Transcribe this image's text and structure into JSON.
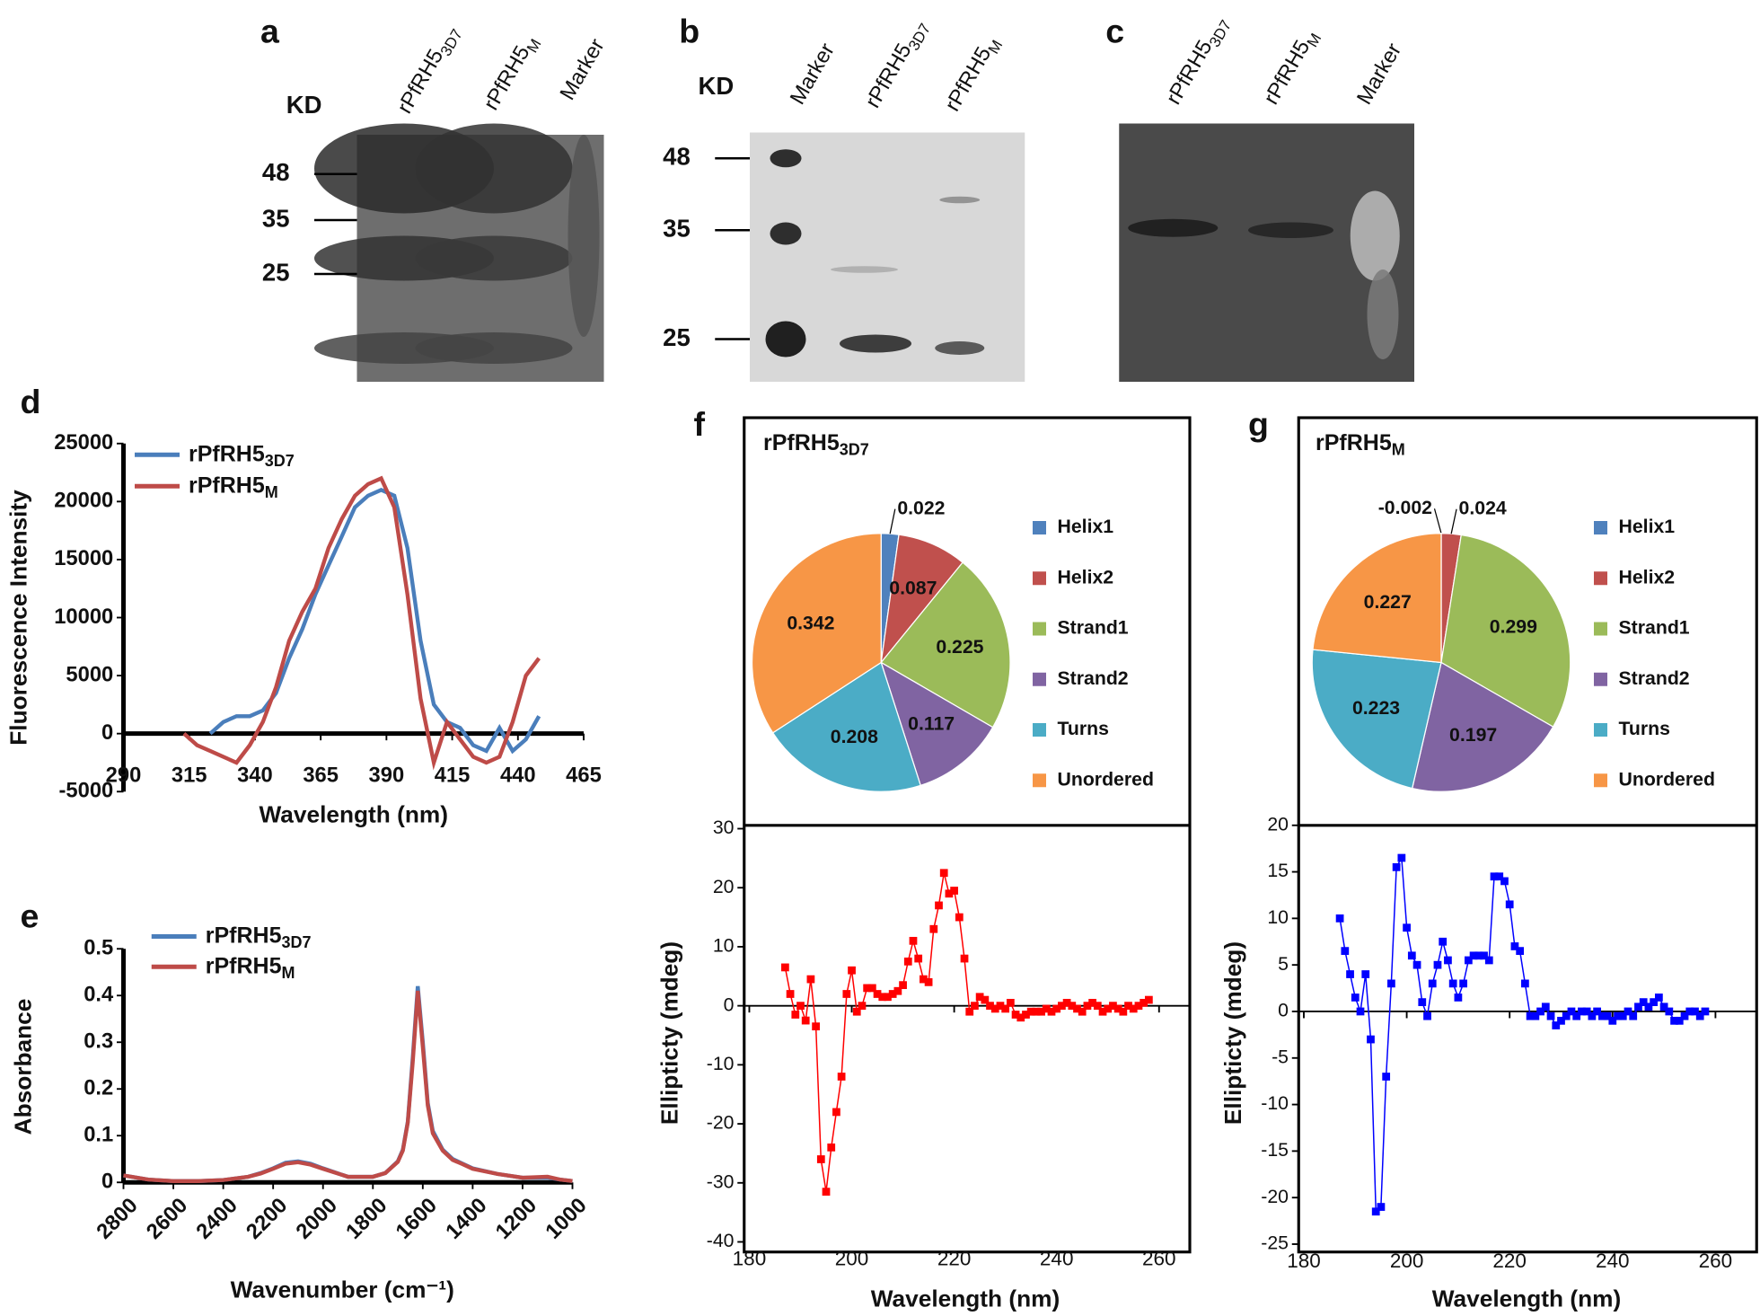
{
  "gels": [
    {
      "panel": "a",
      "unit": "KD",
      "lanes": [
        {
          "text": "rPfRH5",
          "sub": "3D7"
        },
        {
          "text": "rPfRH5",
          "sub": "M"
        },
        {
          "text": "Marker"
        }
      ],
      "markers": [
        48,
        35,
        25
      ]
    },
    {
      "panel": "b",
      "unit": "KD",
      "lanes": [
        {
          "text": "Marker"
        },
        {
          "text": "rPfRH5",
          "sub": "3D7"
        },
        {
          "text": "rPfRH5",
          "sub": "M"
        }
      ],
      "markers": [
        48,
        35,
        25
      ]
    },
    {
      "panel": "c",
      "lanes": [
        {
          "text": "rPfRH5",
          "sub": "3D7"
        },
        {
          "text": "rPfRH5",
          "sub": "M"
        },
        {
          "text": "Marker"
        }
      ]
    }
  ],
  "chart_data": [
    {
      "type": "line",
      "panel": "d",
      "xlabel": "Wavelength (nm)",
      "ylabel": "Fluorescence Intensity",
      "xlim": [
        290,
        465
      ],
      "xticks": [
        290,
        315,
        340,
        365,
        390,
        415,
        440,
        465
      ],
      "ylim": [
        -5000,
        25000
      ],
      "yticks": [
        -5000,
        0,
        5000,
        10000,
        15000,
        20000,
        25000
      ],
      "x": [
        313,
        318,
        323,
        328,
        333,
        338,
        343,
        348,
        353,
        358,
        363,
        368,
        373,
        378,
        383,
        388,
        393,
        398,
        403,
        408,
        413,
        418,
        423,
        428,
        433,
        438,
        443,
        448
      ],
      "series": [
        {
          "name": "rPfRH5",
          "name_sub": "3D7",
          "color": "#4a7ebb",
          "values": [
            null,
            null,
            0,
            1000,
            1500,
            1500,
            2000,
            3500,
            6500,
            9000,
            12000,
            14500,
            17000,
            19500,
            20500,
            21000,
            20500,
            16000,
            8000,
            2500,
            1000,
            500,
            -1000,
            -1500,
            500,
            -1500,
            -500,
            1500
          ]
        },
        {
          "name": "rPfRH5",
          "name_sub": "M",
          "color": "#be4b48",
          "values": [
            0,
            -1000,
            -1500,
            -2000,
            -2500,
            -1000,
            1000,
            4000,
            8000,
            10500,
            12500,
            16000,
            18500,
            20500,
            21500,
            22000,
            19500,
            12000,
            3000,
            -2500,
            1000,
            -500,
            -2000,
            -2500,
            -2000,
            1000,
            5000,
            6500
          ]
        }
      ]
    },
    {
      "type": "line",
      "panel": "e",
      "xlabel": "Wavenumber (cm⁻¹)",
      "ylabel": "Absorbance",
      "xlim": [
        2800,
        1000
      ],
      "xticks": [
        2800,
        2600,
        2400,
        2200,
        2000,
        1800,
        1600,
        1400,
        1200,
        1000
      ],
      "ylim": [
        0,
        0.5
      ],
      "yticks": [
        0,
        0.1,
        0.2,
        0.3,
        0.4,
        0.5
      ],
      "x": [
        2800,
        2700,
        2600,
        2500,
        2400,
        2300,
        2250,
        2200,
        2150,
        2100,
        2050,
        2000,
        1900,
        1800,
        1750,
        1700,
        1680,
        1660,
        1640,
        1620,
        1600,
        1580,
        1560,
        1520,
        1480,
        1440,
        1400,
        1300,
        1200,
        1100,
        1050,
        1000
      ],
      "series": [
        {
          "name": "rPfRH5",
          "name_sub": "3D7",
          "color": "#4a7ebb",
          "values": [
            0.015,
            0.006,
            0.003,
            0.003,
            0.005,
            0.012,
            0.02,
            0.03,
            0.042,
            0.045,
            0.04,
            0.03,
            0.012,
            0.012,
            0.02,
            0.045,
            0.07,
            0.13,
            0.27,
            0.42,
            0.3,
            0.17,
            0.11,
            0.07,
            0.05,
            0.04,
            0.03,
            0.018,
            0.01,
            0.01,
            0.006,
            0.003
          ]
        },
        {
          "name": "rPfRH5",
          "name_sub": "M",
          "color": "#be4b48",
          "values": [
            0.015,
            0.006,
            0.003,
            0.003,
            0.005,
            0.012,
            0.019,
            0.029,
            0.04,
            0.043,
            0.038,
            0.029,
            0.012,
            0.012,
            0.02,
            0.044,
            0.068,
            0.128,
            0.26,
            0.41,
            0.29,
            0.165,
            0.105,
            0.068,
            0.048,
            0.039,
            0.029,
            0.018,
            0.01,
            0.012,
            0.006,
            0.003
          ]
        }
      ]
    },
    {
      "type": "pie",
      "panel": "f",
      "title": "rPfRH5",
      "title_sub": "3D7",
      "categories": [
        "Helix1",
        "Helix2",
        "Strand1",
        "Strand2",
        "Turns",
        "Unordered"
      ],
      "colors": [
        "#4f81bd",
        "#c0504d",
        "#9bbb59",
        "#8064a2",
        "#4bacc6",
        "#f79646"
      ],
      "values": [
        0.022,
        0.087,
        0.225,
        0.117,
        0.208,
        0.342
      ]
    },
    {
      "type": "line",
      "markers": true,
      "xlabel": "Wavelength (nm)",
      "ylabel": "Ellipticty (mdeg)",
      "xlim": [
        179,
        266
      ],
      "xticks": [
        180,
        200,
        220,
        240,
        260
      ],
      "ylim": [
        -40,
        30
      ],
      "yticks": [
        -40,
        -30,
        -20,
        -10,
        0,
        10,
        20,
        30
      ],
      "x": [
        187,
        188,
        189,
        190,
        191,
        192,
        193,
        194,
        195,
        196,
        197,
        198,
        199,
        200,
        201,
        202,
        203,
        204,
        205,
        206,
        207,
        208,
        209,
        210,
        211,
        212,
        213,
        214,
        215,
        216,
        217,
        218,
        219,
        220,
        221,
        222,
        223,
        224,
        225,
        226,
        227,
        228,
        229,
        230,
        231,
        232,
        233,
        234,
        235,
        236,
        237,
        238,
        239,
        240,
        241,
        242,
        243,
        244,
        245,
        246,
        247,
        248,
        249,
        250,
        251,
        252,
        253,
        254,
        255,
        256,
        257,
        258
      ],
      "series": [
        {
          "color": "#ff0000",
          "values": [
            6.5,
            2,
            -1.5,
            0,
            -2.5,
            4.5,
            -3.5,
            -26,
            -31.5,
            -24,
            -18,
            -12,
            2,
            6,
            -1,
            0,
            3,
            3,
            2,
            1.5,
            1.5,
            2,
            2.5,
            3.5,
            7.5,
            11,
            8,
            4.5,
            4,
            13,
            17,
            22.5,
            19,
            19.5,
            15,
            8,
            -1,
            0,
            1.5,
            1,
            0,
            -0.5,
            0,
            -0.5,
            0.5,
            -1.5,
            -2,
            -1.5,
            -1,
            -1,
            -1,
            -0.5,
            -1,
            -0.5,
            0,
            0.5,
            0,
            -0.5,
            -1,
            0,
            0.5,
            0,
            -1,
            -0.5,
            0,
            -0.5,
            -1,
            0,
            -0.5,
            0,
            0.5,
            1
          ]
        }
      ]
    },
    {
      "type": "pie",
      "panel": "g",
      "title": "rPfRH5",
      "title_sub": "M",
      "categories": [
        "Helix1",
        "Helix2",
        "Strand1",
        "Strand2",
        "Turns",
        "Unordered"
      ],
      "colors": [
        "#4f81bd",
        "#c0504d",
        "#9bbb59",
        "#8064a2",
        "#4bacc6",
        "#f79646"
      ],
      "values": [
        -0.002,
        0.024,
        0.299,
        0.197,
        0.223,
        0.227
      ]
    },
    {
      "type": "line",
      "markers": true,
      "xlabel": "Wavelength (nm)",
      "ylabel": "Ellipticty (mdeg)",
      "xlim": [
        179,
        268
      ],
      "xticks": [
        180,
        200,
        220,
        240,
        260
      ],
      "ylim": [
        -25,
        20
      ],
      "yticks": [
        -25,
        -20,
        -15,
        -10,
        -5,
        0,
        5,
        10,
        15,
        20
      ],
      "x": [
        187,
        188,
        189,
        190,
        191,
        192,
        193,
        194,
        195,
        196,
        197,
        198,
        199,
        200,
        201,
        202,
        203,
        204,
        205,
        206,
        207,
        208,
        209,
        210,
        211,
        212,
        213,
        214,
        215,
        216,
        217,
        218,
        219,
        220,
        221,
        222,
        223,
        224,
        225,
        226,
        227,
        228,
        229,
        230,
        231,
        232,
        233,
        234,
        235,
        236,
        237,
        238,
        239,
        240,
        241,
        242,
        243,
        244,
        245,
        246,
        247,
        248,
        249,
        250,
        251,
        252,
        253,
        254,
        255,
        256,
        257,
        258
      ],
      "series": [
        {
          "color": "#0000ff",
          "values": [
            10,
            6.5,
            4,
            1.5,
            0,
            4,
            -3,
            -21.5,
            -21,
            -7,
            3,
            15.5,
            16.5,
            9,
            6,
            5,
            1,
            -0.5,
            3,
            5,
            7.5,
            5.5,
            3,
            1.5,
            3,
            5.5,
            6,
            6,
            6,
            5.5,
            14.5,
            14.5,
            14,
            11.5,
            7,
            6.5,
            3,
            -0.5,
            -0.5,
            0,
            0.5,
            -0.5,
            -1.5,
            -1,
            -0.5,
            0,
            -0.5,
            0,
            0,
            -0.5,
            0,
            -0.5,
            -0.5,
            -1,
            -0.5,
            -0.5,
            0,
            -0.5,
            0.5,
            1,
            0.5,
            1,
            1.5,
            0.5,
            0,
            -1,
            -1,
            -0.5,
            0,
            0,
            -0.5,
            0
          ]
        }
      ]
    }
  ]
}
